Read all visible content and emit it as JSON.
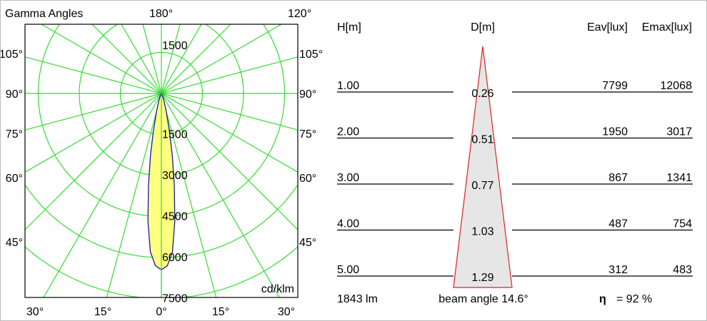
{
  "chart_data": [
    {
      "type": "polar",
      "title": "Gamma Angles",
      "unit": "cd/klm",
      "top_labels": [
        "180°",
        "120°"
      ],
      "side_labels": [
        "105°",
        "90°",
        "75°",
        "60°",
        "45°"
      ],
      "bottom_labels": [
        "30°",
        "15°",
        "0°",
        "15°",
        "30°"
      ],
      "ring_labels_top": [
        "1500"
      ],
      "ring_labels": [
        "1500",
        "3000",
        "4500",
        "6000",
        "7500"
      ],
      "ring_values": [
        1500,
        3000,
        4500,
        6000,
        7500
      ],
      "curve": {
        "gamma_deg": [
          0,
          2,
          4,
          6,
          8,
          10,
          12,
          15,
          20,
          30,
          40
        ],
        "intensity_cd_klm": [
          6450,
          6300,
          5800,
          4700,
          3400,
          2300,
          1400,
          700,
          250,
          50,
          0
        ]
      },
      "colors": {
        "grid": "#33dd33",
        "curve": "#1a1aa0",
        "fill": "#ffff80"
      }
    },
    {
      "type": "table",
      "headers": {
        "h": "H[m]",
        "d": "D[m]",
        "eav": "Eav[lux]",
        "emax": "Emax[lux]"
      },
      "rows": [
        {
          "h": "1.00",
          "d": "0.26",
          "eav": "7799",
          "emax": "12068"
        },
        {
          "h": "2.00",
          "d": "0.51",
          "eav": "1950",
          "emax": "3017"
        },
        {
          "h": "3.00",
          "d": "0.77",
          "eav": "867",
          "emax": "1341"
        },
        {
          "h": "4.00",
          "d": "1.03",
          "eav": "487",
          "emax": "754"
        },
        {
          "h": "5.00",
          "d": "1.29",
          "eav": "312",
          "emax": "483"
        }
      ],
      "footer": {
        "flux": "1843 lm",
        "beam": "beam angle 14.6°",
        "eta_symbol": "η",
        "eta": "= 92 %"
      },
      "colors": {
        "cone_fill": "#e6e6e6",
        "cone_stroke": "#e02020"
      }
    }
  ]
}
